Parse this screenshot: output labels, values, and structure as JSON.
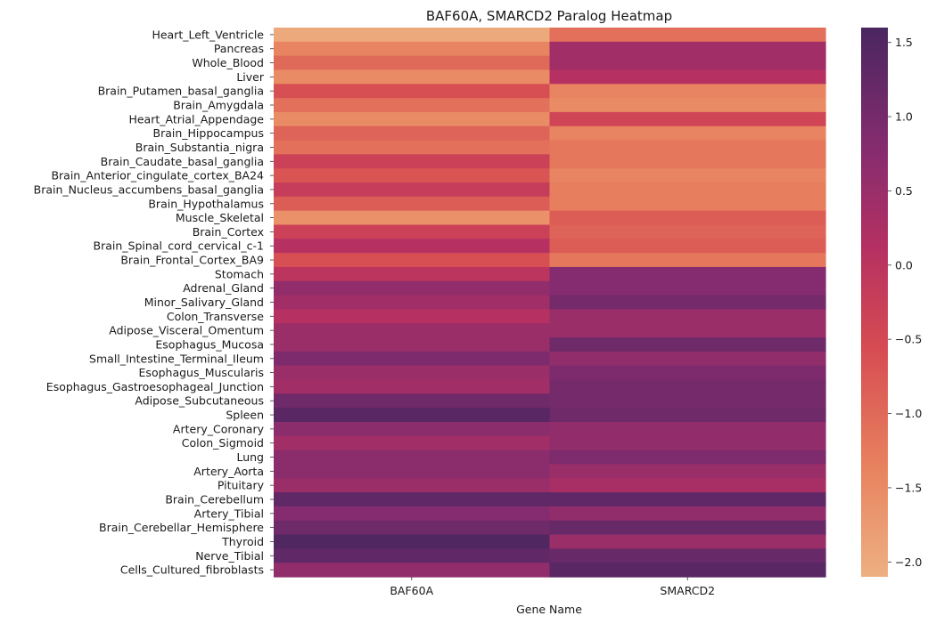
{
  "chart_data": {
    "type": "heatmap",
    "title": "BAF60A, SMARCD2 Paralog Heatmap",
    "xlabel": "Gene Name",
    "ylabel": "",
    "columns": [
      "BAF60A",
      "SMARCD2"
    ],
    "rows": [
      "Heart_Left_Ventricle",
      "Pancreas",
      "Whole_Blood",
      "Liver",
      "Brain_Putamen_basal_ganglia",
      "Brain_Amygdala",
      "Heart_Atrial_Appendage",
      "Brain_Hippocampus",
      "Brain_Substantia_nigra",
      "Brain_Caudate_basal_ganglia",
      "Brain_Anterior_cingulate_cortex_BA24",
      "Brain_Nucleus_accumbens_basal_ganglia",
      "Brain_Hypothalamus",
      "Muscle_Skeletal",
      "Brain_Cortex",
      "Brain_Spinal_cord_cervical_c-1",
      "Brain_Frontal_Cortex_BA9",
      "Stomach",
      "Adrenal_Gland",
      "Minor_Salivary_Gland",
      "Colon_Transverse",
      "Adipose_Visceral_Omentum",
      "Esophagus_Mucosa",
      "Small_Intestine_Terminal_Ileum",
      "Esophagus_Muscularis",
      "Esophagus_Gastroesophageal_Junction",
      "Adipose_Subcutaneous",
      "Spleen",
      "Artery_Coronary",
      "Colon_Sigmoid",
      "Lung",
      "Artery_Aorta",
      "Pituitary",
      "Brain_Cerebellum",
      "Artery_Tibial",
      "Brain_Cerebellar_Hemisphere",
      "Thyroid",
      "Nerve_Tibial",
      "Cells_Cultured_fibroblasts"
    ],
    "values": [
      [
        -2.0,
        -1.1
      ],
      [
        -1.4,
        0.4
      ],
      [
        -1.0,
        0.4
      ],
      [
        -1.5,
        0.1
      ],
      [
        -0.6,
        -1.4
      ],
      [
        -1.1,
        -1.5
      ],
      [
        -1.5,
        -0.4
      ],
      [
        -0.9,
        -1.4
      ],
      [
        -1.1,
        -1.2
      ],
      [
        -0.3,
        -1.2
      ],
      [
        -0.7,
        -1.4
      ],
      [
        -0.2,
        -1.3
      ],
      [
        -0.8,
        -1.3
      ],
      [
        -1.6,
        -0.8
      ],
      [
        -0.3,
        -0.9
      ],
      [
        0.1,
        -0.8
      ],
      [
        -0.6,
        -1.2
      ],
      [
        0.0,
        0.8
      ],
      [
        0.6,
        0.8
      ],
      [
        0.4,
        1.0
      ],
      [
        0.1,
        0.5
      ],
      [
        0.5,
        0.5
      ],
      [
        0.5,
        1.1
      ],
      [
        0.9,
        0.6
      ],
      [
        0.5,
        0.9
      ],
      [
        0.4,
        1.0
      ],
      [
        1.1,
        1.0
      ],
      [
        1.4,
        1.1
      ],
      [
        0.7,
        0.6
      ],
      [
        0.4,
        0.6
      ],
      [
        0.7,
        0.9
      ],
      [
        0.7,
        0.5
      ],
      [
        0.5,
        0.3
      ],
      [
        1.3,
        1.3
      ],
      [
        0.8,
        0.6
      ],
      [
        1.1,
        1.2
      ],
      [
        1.5,
        0.5
      ],
      [
        1.3,
        1.2
      ],
      [
        0.6,
        1.4
      ]
    ],
    "vmin": -2.1,
    "vmax": 1.6,
    "colorbar_ticks": [
      1.5,
      1.0,
      0.5,
      0.0,
      -0.5,
      -1.0,
      -1.5,
      -2.0
    ],
    "colorbar_tick_labels": [
      "1.5",
      "1.0",
      "0.5",
      "0.0",
      "−0.5",
      "−1.0",
      "−1.5",
      "−2.0"
    ],
    "colormap": "flare",
    "colormap_stops": [
      {
        "v": 0.0,
        "color": "#edb081"
      },
      {
        "v": 0.2,
        "color": "#e8825f"
      },
      {
        "v": 0.42,
        "color": "#d64b52"
      },
      {
        "v": 0.6,
        "color": "#b53062"
      },
      {
        "v": 0.78,
        "color": "#852c6f"
      },
      {
        "v": 1.0,
        "color": "#4a2660"
      }
    ]
  }
}
